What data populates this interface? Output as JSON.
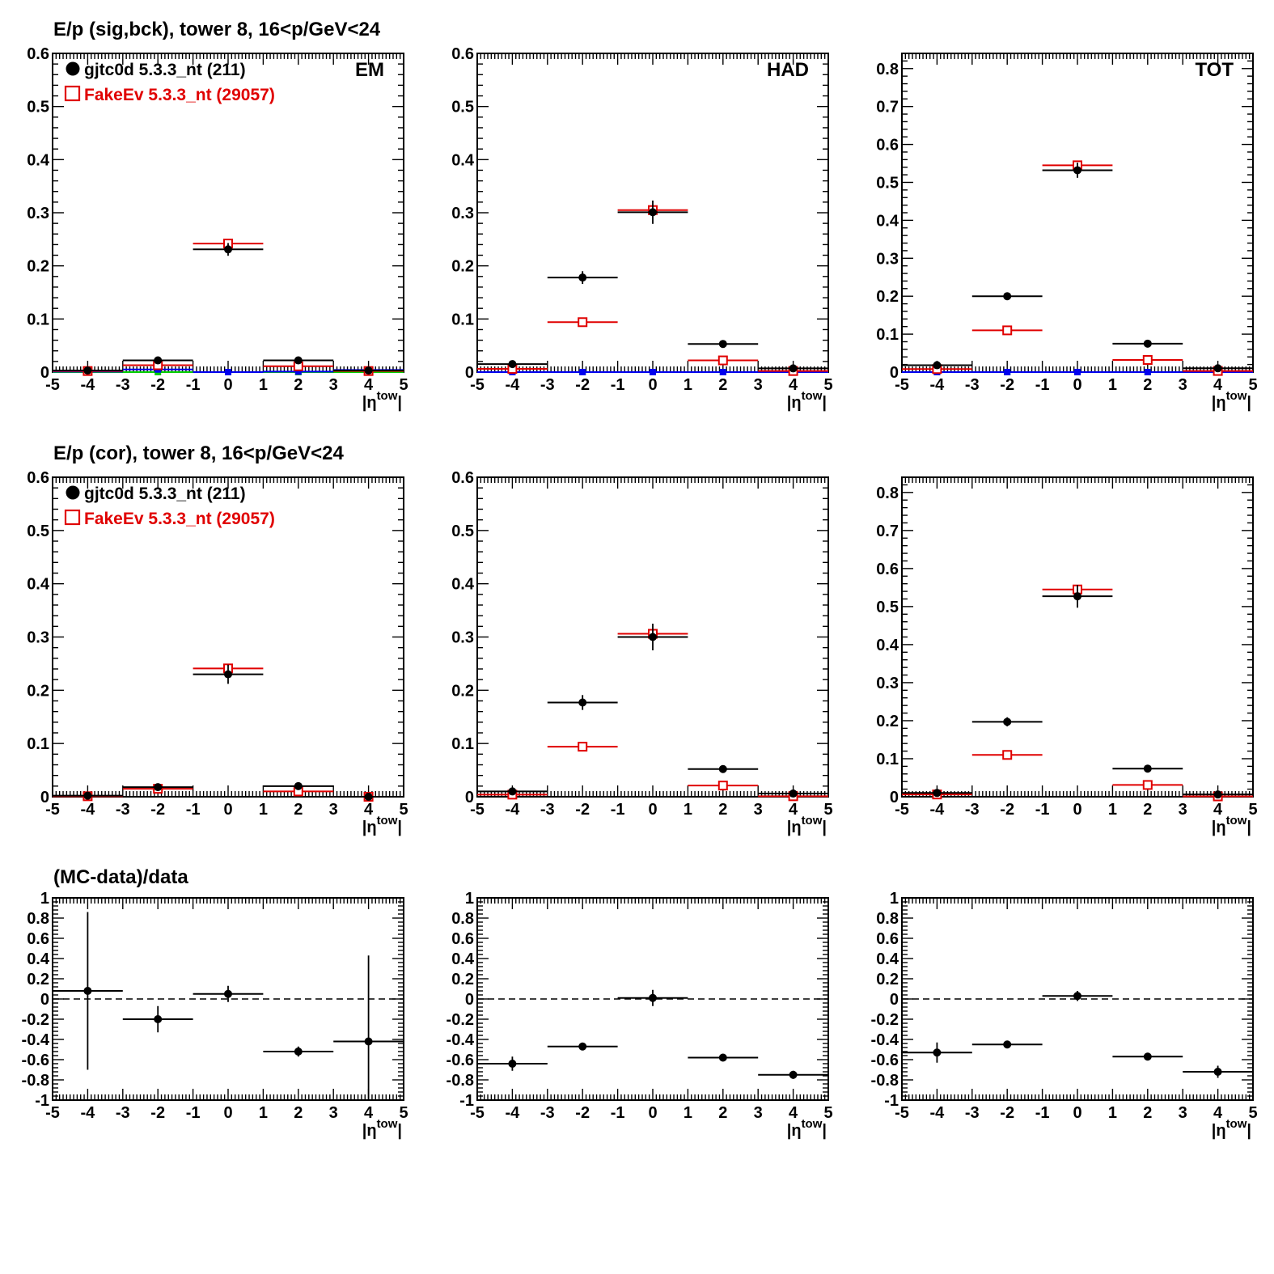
{
  "rows": [
    {
      "title": "E/p (sig,bck), tower 8, 16<p/GeV<24"
    },
    {
      "title": "E/p (cor), tower 8, 16<p/GeV<24"
    },
    {
      "title": "(MC-data)/data"
    }
  ],
  "legend": {
    "data_label": "gjtc0d 5.3.3_nt (211)",
    "mc_label": "FakeEv 5.3.3_nt (29057)"
  },
  "x_axis_label": {
    "base": "|η",
    "sup": "tow",
    "end": "|"
  },
  "colors": {
    "data": "#000000",
    "mc": "#e00000",
    "bck_blue": "#0000ee",
    "bck_green": "#00cc00"
  },
  "chart_data": [
    {
      "type": "scatter",
      "row": 0,
      "col": 0,
      "panel_label": "EM",
      "xlim": [
        -5,
        5
      ],
      "ylim": [
        0,
        0.6
      ],
      "xticks": [
        "-5",
        "-4",
        "-3",
        "-2",
        "-1",
        "0",
        "1",
        "2",
        "3",
        "4",
        "5"
      ],
      "yticks": [
        "0",
        "0.1",
        "0.2",
        "0.3",
        "0.4",
        "0.5",
        "0.6"
      ],
      "series": [
        {
          "name": "gjtc0d 5.3.3_nt (211)",
          "marker": "dot",
          "color": "#000000",
          "x": [
            -4,
            -2,
            0,
            2,
            4
          ],
          "y": [
            0.003,
            0.022,
            0.231,
            0.022,
            0.003
          ],
          "yerr": [
            0.002,
            0.005,
            0.012,
            0.005,
            0.002
          ]
        },
        {
          "name": "FakeEv 5.3.3_nt (29057)",
          "marker": "square",
          "color": "#e00000",
          "x": [
            -4,
            -2,
            0,
            2,
            4
          ],
          "y": [
            0.002,
            0.013,
            0.242,
            0.011,
            0.002
          ],
          "yerr": [
            0,
            0,
            0,
            0,
            0
          ]
        },
        {
          "marker": "square-blue",
          "color": "#0000ee",
          "x": [
            -4,
            -2,
            0,
            2,
            4
          ],
          "y": [
            0.001,
            0.005,
            0.0,
            0.001,
            0.004
          ],
          "yerr": [
            0,
            0,
            0,
            0,
            0
          ]
        },
        {
          "marker": "square-green",
          "color": "#00cc00",
          "x": [
            -4,
            -2,
            0,
            2,
            4
          ],
          "y": [
            0.0,
            0.0,
            0.0,
            0.0,
            0.0
          ],
          "yerr": [
            0,
            0,
            0,
            0,
            0
          ]
        }
      ]
    },
    {
      "type": "scatter",
      "row": 0,
      "col": 1,
      "panel_label": "HAD",
      "xlim": [
        -5,
        5
      ],
      "ylim": [
        0,
        0.6
      ],
      "xticks": [
        "-5",
        "-4",
        "-3",
        "-2",
        "-1",
        "0",
        "1",
        "2",
        "3",
        "4",
        "5"
      ],
      "yticks": [
        "0",
        "0.1",
        "0.2",
        "0.3",
        "0.4",
        "0.5",
        "0.6"
      ],
      "series": [
        {
          "color": "#000000",
          "marker": "dot",
          "x": [
            -4,
            -2,
            0,
            2,
            4
          ],
          "y": [
            0.015,
            0.178,
            0.301,
            0.053,
            0.007
          ],
          "yerr": [
            0.003,
            0.012,
            0.022,
            0.004,
            0.002
          ]
        },
        {
          "color": "#e00000",
          "marker": "square",
          "x": [
            -4,
            -2,
            0,
            2,
            4
          ],
          "y": [
            0.006,
            0.094,
            0.305,
            0.022,
            0.002
          ],
          "yerr": [
            0,
            0,
            0,
            0,
            0
          ]
        },
        {
          "color": "#0000ee",
          "marker": "square-blue",
          "x": [
            -4,
            -2,
            0,
            2,
            4
          ],
          "y": [
            0.0,
            0.0,
            0.0,
            0.0,
            0.0
          ],
          "yerr": [
            0,
            0,
            0,
            0,
            0
          ]
        },
        {
          "color": "#00cc00",
          "marker": "square-green",
          "x": [
            -4,
            -2,
            0,
            2,
            4
          ],
          "y": [
            0.0,
            0.0,
            0.0,
            0.0,
            0.0
          ],
          "yerr": [
            0,
            0,
            0,
            0,
            0
          ]
        }
      ]
    },
    {
      "type": "scatter",
      "row": 0,
      "col": 2,
      "panel_label": "TOT",
      "xlim": [
        -5,
        5
      ],
      "ylim": [
        0,
        0.84
      ],
      "xticks": [
        "-5",
        "-4",
        "-3",
        "-2",
        "-1",
        "0",
        "1",
        "2",
        "3",
        "4",
        "5"
      ],
      "yticks": [
        "0",
        "0.1",
        "0.2",
        "0.3",
        "0.4",
        "0.5",
        "0.6",
        "0.7",
        "0.8"
      ],
      "series": [
        {
          "color": "#000000",
          "marker": "dot",
          "x": [
            -4,
            -2,
            0,
            2,
            4
          ],
          "y": [
            0.018,
            0.2,
            0.532,
            0.075,
            0.01
          ],
          "yerr": [
            0.004,
            0.01,
            0.02,
            0.005,
            0.003
          ]
        },
        {
          "color": "#e00000",
          "marker": "square",
          "x": [
            -4,
            -2,
            0,
            2,
            4
          ],
          "y": [
            0.008,
            0.11,
            0.545,
            0.032,
            0.003
          ],
          "yerr": [
            0,
            0,
            0,
            0,
            0
          ]
        },
        {
          "color": "#0000ee",
          "marker": "square-blue",
          "x": [
            -4,
            -2,
            0,
            2,
            4
          ],
          "y": [
            0.0,
            0.0,
            0.0,
            0.0,
            0.0
          ],
          "yerr": [
            0,
            0,
            0,
            0,
            0
          ]
        },
        {
          "color": "#00cc00",
          "marker": "square-green",
          "x": [
            -4,
            -2,
            0,
            2,
            4
          ],
          "y": [
            0.0,
            0.0,
            0.0,
            0.0,
            0.0
          ],
          "yerr": [
            0,
            0,
            0,
            0,
            0
          ]
        }
      ]
    },
    {
      "type": "scatter",
      "row": 1,
      "col": 0,
      "panel_label": "",
      "xlim": [
        -5,
        5
      ],
      "ylim": [
        0,
        0.6
      ],
      "xticks": [
        "-5",
        "-4",
        "-3",
        "-2",
        "-1",
        "0",
        "1",
        "2",
        "3",
        "4",
        "5"
      ],
      "yticks": [
        "0",
        "0.1",
        "0.2",
        "0.3",
        "0.4",
        "0.5",
        "0.6"
      ],
      "series": [
        {
          "color": "#000000",
          "marker": "dot",
          "x": [
            -4,
            -2,
            0,
            2,
            4
          ],
          "y": [
            0.002,
            0.018,
            0.23,
            0.02,
            0.0
          ],
          "yerr": [
            0.002,
            0.004,
            0.018,
            0.005,
            0.001
          ]
        },
        {
          "color": "#e00000",
          "marker": "square",
          "x": [
            -4,
            -2,
            0,
            2,
            4
          ],
          "y": [
            0.001,
            0.015,
            0.241,
            0.01,
            0.0
          ],
          "yerr": [
            0,
            0,
            0,
            0,
            0
          ]
        }
      ]
    },
    {
      "type": "scatter",
      "row": 1,
      "col": 1,
      "panel_label": "",
      "xlim": [
        -5,
        5
      ],
      "ylim": [
        0,
        0.6
      ],
      "xticks": [
        "-5",
        "-4",
        "-3",
        "-2",
        "-1",
        "0",
        "1",
        "2",
        "3",
        "4",
        "5"
      ],
      "yticks": [
        "0",
        "0.1",
        "0.2",
        "0.3",
        "0.4",
        "0.5",
        "0.6"
      ],
      "series": [
        {
          "color": "#000000",
          "marker": "dot",
          "x": [
            -4,
            -2,
            0,
            2,
            4
          ],
          "y": [
            0.01,
            0.177,
            0.3,
            0.052,
            0.006
          ],
          "yerr": [
            0.003,
            0.014,
            0.025,
            0.004,
            0.003
          ]
        },
        {
          "color": "#e00000",
          "marker": "square",
          "x": [
            -4,
            -2,
            0,
            2,
            4
          ],
          "y": [
            0.004,
            0.094,
            0.306,
            0.021,
            0.001
          ],
          "yerr": [
            0,
            0,
            0,
            0,
            0
          ]
        }
      ]
    },
    {
      "type": "scatter",
      "row": 1,
      "col": 2,
      "panel_label": "",
      "xlim": [
        -5,
        5
      ],
      "ylim": [
        0,
        0.84
      ],
      "xticks": [
        "-5",
        "-4",
        "-3",
        "-2",
        "-1",
        "0",
        "1",
        "2",
        "3",
        "4",
        "5"
      ],
      "yticks": [
        "0",
        "0.1",
        "0.2",
        "0.3",
        "0.4",
        "0.5",
        "0.6",
        "0.7",
        "0.8"
      ],
      "series": [
        {
          "color": "#000000",
          "marker": "dot",
          "x": [
            -4,
            -2,
            0,
            2,
            4
          ],
          "y": [
            0.01,
            0.197,
            0.527,
            0.074,
            0.006
          ],
          "yerr": [
            0.004,
            0.012,
            0.03,
            0.005,
            0.004
          ]
        },
        {
          "color": "#e00000",
          "marker": "square",
          "x": [
            -4,
            -2,
            0,
            2,
            4
          ],
          "y": [
            0.006,
            0.11,
            0.545,
            0.031,
            0.001
          ],
          "yerr": [
            0,
            0,
            0,
            0,
            0
          ]
        }
      ]
    },
    {
      "type": "scatter",
      "row": 2,
      "col": 0,
      "panel_label": "",
      "xlim": [
        -5,
        5
      ],
      "ylim": [
        -1,
        1
      ],
      "ref_line": 0,
      "xticks": [
        "-5",
        "-4",
        "-3",
        "-2",
        "-1",
        "0",
        "1",
        "2",
        "3",
        "4",
        "5"
      ],
      "yticks": [
        "-1",
        "-0.8",
        "-0.6",
        "-0.4",
        "-0.2",
        "0",
        "0.2",
        "0.4",
        "0.6",
        "0.8",
        "1"
      ],
      "series": [
        {
          "color": "#000000",
          "marker": "dot",
          "x": [
            -4,
            -2,
            0,
            2,
            4
          ],
          "y": [
            0.08,
            -0.2,
            0.05,
            -0.52,
            -0.42
          ],
          "yerr": [
            0.78,
            0.13,
            0.08,
            0.05,
            0.85
          ]
        }
      ]
    },
    {
      "type": "scatter",
      "row": 2,
      "col": 1,
      "panel_label": "",
      "xlim": [
        -5,
        5
      ],
      "ylim": [
        -1,
        1
      ],
      "ref_line": 0,
      "xticks": [
        "-5",
        "-4",
        "-3",
        "-2",
        "-1",
        "0",
        "1",
        "2",
        "3",
        "4",
        "5"
      ],
      "yticks": [
        "-1",
        "-0.8",
        "-0.6",
        "-0.4",
        "-0.2",
        "0",
        "0.2",
        "0.4",
        "0.6",
        "0.8",
        "1"
      ],
      "series": [
        {
          "color": "#000000",
          "marker": "dot",
          "x": [
            -4,
            -2,
            0,
            2,
            4
          ],
          "y": [
            -0.64,
            -0.47,
            0.01,
            -0.58,
            -0.75
          ],
          "yerr": [
            0.07,
            0.03,
            0.08,
            0.03,
            0.04
          ]
        }
      ]
    },
    {
      "type": "scatter",
      "row": 2,
      "col": 2,
      "panel_label": "",
      "xlim": [
        -5,
        5
      ],
      "ylim": [
        -1,
        1
      ],
      "ref_line": 0,
      "xticks": [
        "-5",
        "-4",
        "-3",
        "-2",
        "-1",
        "0",
        "1",
        "2",
        "3",
        "4",
        "5"
      ],
      "yticks": [
        "-1",
        "-0.8",
        "-0.6",
        "-0.4",
        "-0.2",
        "0",
        "0.2",
        "0.4",
        "0.6",
        "0.8",
        "1"
      ],
      "series": [
        {
          "color": "#000000",
          "marker": "dot",
          "x": [
            -4,
            -2,
            0,
            2,
            4
          ],
          "y": [
            -0.53,
            -0.45,
            0.03,
            -0.57,
            -0.72
          ],
          "yerr": [
            0.1,
            0.03,
            0.05,
            0.03,
            0.06
          ]
        }
      ]
    }
  ]
}
